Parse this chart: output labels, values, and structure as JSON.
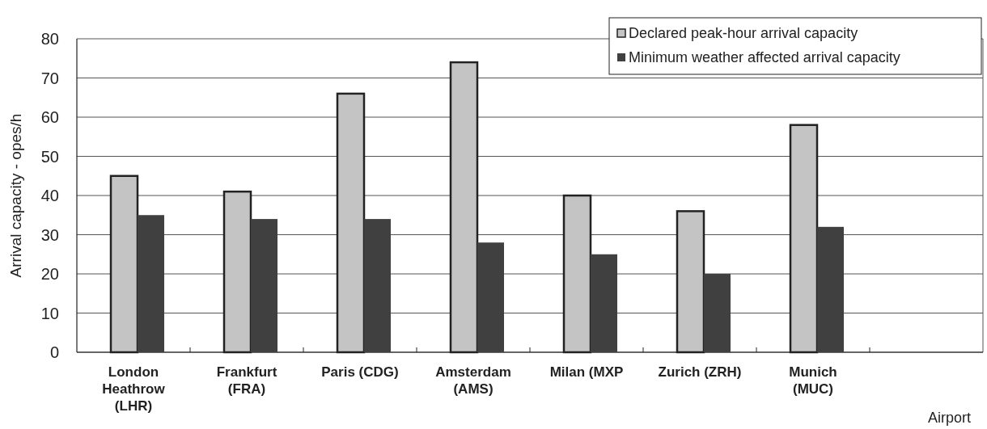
{
  "chart_data": {
    "type": "bar",
    "ylabel": "Arrival capacity - opes/h",
    "xlabel": "Airport",
    "categories": [
      "London\nHeathrow\n(LHR)",
      "Frankfurt\n(FRA)",
      "Paris (CDG)",
      "Amsterdam\n(AMS)",
      "Milan (MXP",
      "Zurich (ZRH)",
      "Munich\n(MUC)",
      null
    ],
    "series": [
      {
        "name": "Declared peak-hour arrival capacity",
        "color": "#c4c4c4",
        "values": [
          45,
          41,
          66,
          74,
          40,
          36,
          58,
          null
        ]
      },
      {
        "name": "Minimum weather affected arrival capacity",
        "color": "#404040",
        "values": [
          35,
          34,
          34,
          28,
          25,
          20,
          32,
          null
        ]
      }
    ],
    "ylim": [
      0,
      80
    ],
    "yticks": [
      0,
      10,
      20,
      30,
      40,
      50,
      60,
      70,
      80
    ],
    "grid": "y",
    "legend": "top right"
  }
}
